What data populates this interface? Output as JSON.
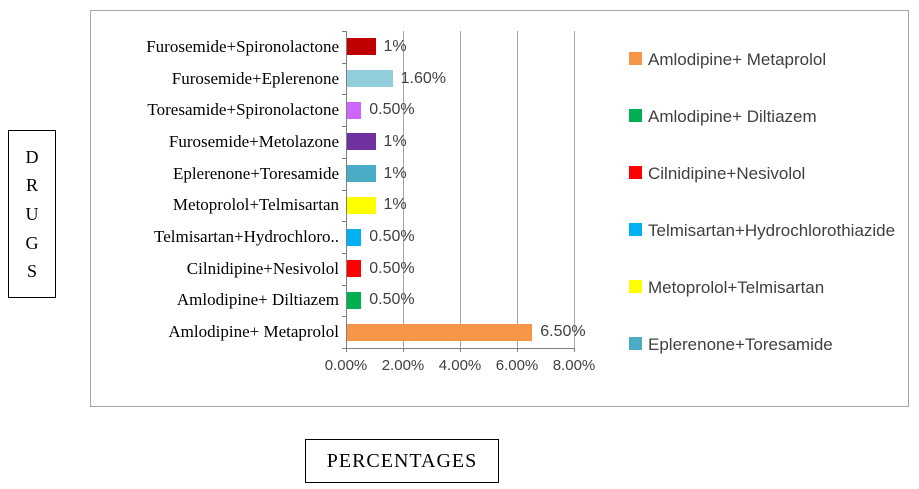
{
  "chart_data": {
    "type": "bar",
    "orientation": "horizontal",
    "title": "",
    "xlabel": "PERCENTAGES",
    "ylabel": "DRUGS",
    "xlim": [
      0,
      8
    ],
    "grid": true,
    "x_ticks": [
      "0.00%",
      "2.00%",
      "4.00%",
      "6.00%",
      "8.00%"
    ],
    "x_tick_values": [
      0,
      2,
      4,
      6,
      8
    ],
    "categories": [
      "Furosemide+Spironolactone",
      "Furosemide+Eplerenone",
      "Toresamide+Spironolactone",
      "Furosemide+Metolazone",
      "Eplerenone+Toresamide",
      "Metoprolol+Telmisartan",
      "Telmisartan+Hydrochloro..",
      "Cilnidipine+Nesivolol",
      "Amlodipine+ Diltiazem",
      "Amlodipine+ Metaprolol"
    ],
    "values": [
      1,
      1.6,
      0.5,
      1,
      1,
      1,
      0.5,
      0.5,
      0.5,
      6.5
    ],
    "value_labels": [
      "1%",
      "1.60%",
      "0.50%",
      "1%",
      "1%",
      "1%",
      "0.50%",
      "0.50%",
      "0.50%",
      "6.50%"
    ],
    "bar_colors": [
      "#C00000",
      "#92CDDC",
      "#CC66FF",
      "#7030A0",
      "#4BACC6",
      "#FFFF00",
      "#00B0F0",
      "#FF0000",
      "#00B050",
      "#F79646"
    ],
    "legend_position": "right",
    "legend": [
      {
        "label": "Amlodipine+ Metaprolol",
        "color": "#F79646"
      },
      {
        "label": "Amlodipine+ Diltiazem",
        "color": "#00B050"
      },
      {
        "label": "Cilnidipine+Nesivolol",
        "color": "#FF0000"
      },
      {
        "label": "Telmisartan+Hydrochlorothiazide",
        "color": "#00B0F0"
      },
      {
        "label": "Metoprolol+Telmisartan",
        "color": "#FFFF00"
      },
      {
        "label": "Eplerenone+Toresamide",
        "color": "#4BACC6"
      }
    ],
    "colors": {
      "gridline": "#A6A6A6",
      "axis": "#808080",
      "chart_border": "#A6A6A6",
      "category_text": "#000000",
      "label_text": "#404040"
    }
  }
}
